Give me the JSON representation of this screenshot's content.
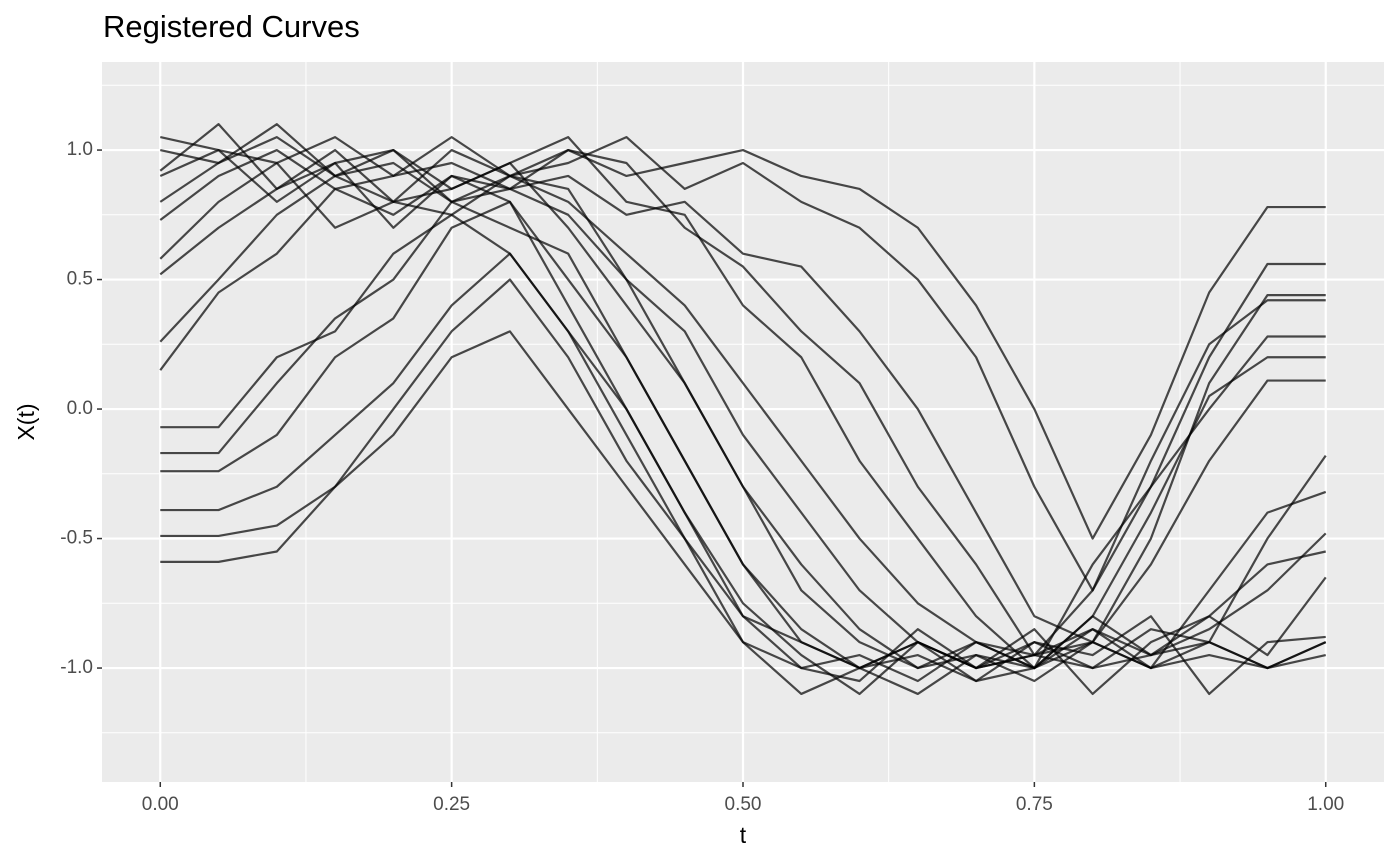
{
  "chart_data": {
    "type": "line",
    "title": "Registered Curves",
    "x_label": "t",
    "y_label": "X(t)",
    "x": [
      0,
      0.05,
      0.1,
      0.15,
      0.2,
      0.25,
      0.3,
      0.35,
      0.4,
      0.45,
      0.5,
      0.55,
      0.6,
      0.65,
      0.7,
      0.75,
      0.8,
      0.85,
      0.9,
      0.95,
      1.0
    ],
    "color": "#000000",
    "opacity": 0.7,
    "grid": true,
    "xlim": [
      -0.05,
      1.05
    ],
    "ylim": [
      -1.44,
      1.34
    ],
    "xticks": [
      {
        "value": 0,
        "label": "0.00"
      },
      {
        "value": 0.25,
        "label": "0.25"
      },
      {
        "value": 0.5,
        "label": "0.50"
      },
      {
        "value": 0.75,
        "label": "0.75"
      },
      {
        "value": 1,
        "label": "1.00"
      }
    ],
    "yticks": [
      {
        "value": -1,
        "label": "-1.0"
      },
      {
        "value": -0.5,
        "label": "-0.5"
      },
      {
        "value": 0,
        "label": "0.0"
      },
      {
        "value": 0.5,
        "label": "0.5"
      },
      {
        "value": 1,
        "label": "1.0"
      }
    ],
    "series": [
      {
        "values": [
          1.05,
          1.0,
          0.95,
          1.05,
          0.9,
          0.95,
          0.85,
          1.0,
          0.9,
          0.95,
          1.0,
          0.9,
          0.85,
          0.7,
          0.4,
          0.0,
          -0.5,
          -0.1,
          0.45,
          0.78,
          0.78
        ]
      },
      {
        "values": [
          0.92,
          1.1,
          0.85,
          1.0,
          0.8,
          1.0,
          0.9,
          0.95,
          1.05,
          0.85,
          0.95,
          0.8,
          0.7,
          0.5,
          0.2,
          -0.3,
          -0.7,
          -0.3,
          0.2,
          0.56,
          0.56
        ]
      },
      {
        "values": [
          0.8,
          0.95,
          1.1,
          0.9,
          0.95,
          0.8,
          0.85,
          0.9,
          0.75,
          0.8,
          0.6,
          0.55,
          0.3,
          0.0,
          -0.4,
          -0.8,
          -0.9,
          -0.5,
          0.1,
          0.44,
          0.44
        ]
      },
      {
        "values": [
          0.73,
          0.9,
          1.0,
          0.85,
          0.9,
          1.05,
          0.9,
          1.0,
          0.95,
          0.7,
          0.55,
          0.3,
          0.1,
          -0.3,
          -0.6,
          -0.95,
          -0.7,
          -0.2,
          0.25,
          0.42,
          0.42
        ]
      },
      {
        "values": [
          0.52,
          0.7,
          0.85,
          0.95,
          1.0,
          0.85,
          0.95,
          1.05,
          0.8,
          0.75,
          0.4,
          0.2,
          -0.2,
          -0.5,
          -0.8,
          -1.0,
          -0.6,
          -0.3,
          0.0,
          0.28,
          0.28
        ]
      },
      {
        "values": [
          0.26,
          0.5,
          0.75,
          0.9,
          1.0,
          0.8,
          0.9,
          0.8,
          0.6,
          0.4,
          0.1,
          -0.2,
          -0.5,
          -0.75,
          -0.9,
          -1.0,
          -0.8,
          -0.4,
          0.05,
          0.2,
          0.2
        ]
      },
      {
        "values": [
          0.15,
          0.45,
          0.6,
          0.85,
          0.75,
          0.9,
          0.85,
          0.75,
          0.5,
          0.3,
          -0.1,
          -0.4,
          -0.7,
          -0.9,
          -1.0,
          -0.95,
          -0.9,
          -0.6,
          -0.2,
          0.11,
          0.11
        ]
      },
      {
        "values": [
          1.0,
          0.95,
          1.05,
          0.9,
          0.8,
          0.85,
          0.95,
          0.7,
          0.4,
          0.1,
          -0.3,
          -0.7,
          -0.9,
          -1.0,
          -0.95,
          -1.05,
          -0.9,
          -1.0,
          -0.7,
          -0.4,
          -0.32
        ]
      },
      {
        "values": [
          0.9,
          1.0,
          0.8,
          0.95,
          0.7,
          0.9,
          0.8,
          0.5,
          0.2,
          -0.2,
          -0.6,
          -0.85,
          -1.0,
          -0.9,
          -1.0,
          -0.85,
          -1.1,
          -0.9,
          -0.8,
          -0.6,
          -0.55
        ]
      },
      {
        "values": [
          0.58,
          0.8,
          0.95,
          0.7,
          0.8,
          0.75,
          0.6,
          0.3,
          0.0,
          -0.4,
          -0.8,
          -1.0,
          -0.95,
          -1.05,
          -0.9,
          -1.0,
          -0.8,
          -0.95,
          -0.9,
          -0.5,
          -0.18
        ]
      },
      {
        "values": [
          -0.07,
          -0.07,
          0.2,
          0.3,
          0.6,
          0.75,
          0.9,
          0.85,
          0.5,
          0.1,
          -0.3,
          -0.6,
          -0.85,
          -1.0,
          -0.9,
          -0.95,
          -1.0,
          -0.85,
          -0.9,
          -1.0,
          -0.9
        ]
      },
      {
        "values": [
          -0.17,
          -0.17,
          0.1,
          0.35,
          0.5,
          0.8,
          0.7,
          0.6,
          0.2,
          -0.2,
          -0.6,
          -0.9,
          -1.0,
          -0.95,
          -1.05,
          -0.9,
          -1.0,
          -0.95,
          -0.8,
          -0.95,
          -0.65
        ]
      },
      {
        "values": [
          -0.24,
          -0.24,
          -0.1,
          0.2,
          0.35,
          0.7,
          0.8,
          0.4,
          0.0,
          -0.4,
          -0.75,
          -0.95,
          -1.1,
          -0.9,
          -1.0,
          -0.95,
          -0.85,
          -1.0,
          -0.9,
          -1.0,
          -0.95
        ]
      },
      {
        "values": [
          -0.39,
          -0.39,
          -0.3,
          -0.1,
          0.1,
          0.4,
          0.6,
          0.3,
          -0.1,
          -0.5,
          -0.9,
          -1.0,
          -1.05,
          -0.85,
          -1.0,
          -0.9,
          -0.95,
          -0.8,
          -1.1,
          -0.9,
          -0.88
        ]
      },
      {
        "values": [
          -0.49,
          -0.49,
          -0.45,
          -0.3,
          0.0,
          0.3,
          0.5,
          0.2,
          -0.2,
          -0.5,
          -0.8,
          -0.9,
          -1.0,
          -1.1,
          -0.95,
          -1.0,
          -0.85,
          -0.95,
          -0.85,
          -0.7,
          -0.48
        ]
      },
      {
        "values": [
          -0.59,
          -0.59,
          -0.55,
          -0.3,
          -0.1,
          0.2,
          0.3,
          0.0,
          -0.3,
          -0.6,
          -0.9,
          -1.1,
          -1.0,
          -0.9,
          -1.05,
          -1.0,
          -0.9,
          -1.0,
          -0.95,
          -1.0,
          -0.9
        ]
      }
    ]
  }
}
